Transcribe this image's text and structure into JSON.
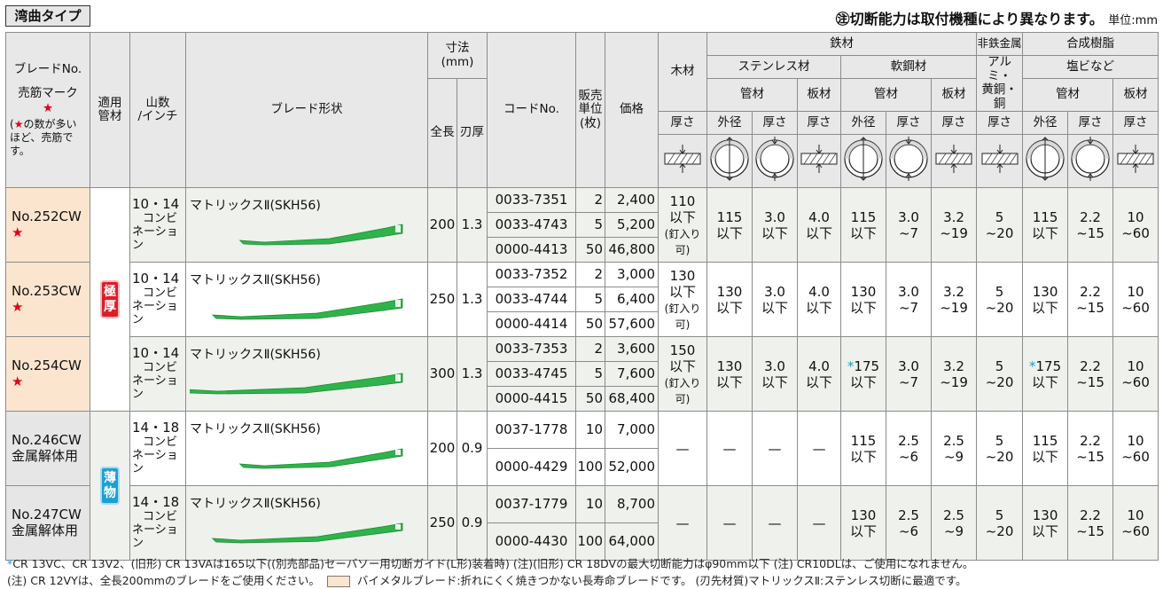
{
  "title": "湾曲タイプ",
  "note": "㊟切断能力は取付機種により異なります。",
  "unit": "単位:mm",
  "header": {
    "blade_no": "ブレードNo.",
    "best_seller": "売筋マーク",
    "star": "★",
    "star_note_1": "の数が多い",
    "star_note_2": "ほど、売筋です。",
    "applicable_1": "適用",
    "applicable_2": "管材",
    "teeth_1": "山数",
    "teeth_2": "/インチ",
    "shape": "ブレード形状",
    "dimensions_1": "寸法",
    "dimensions_2": "(mm)",
    "length": "全長",
    "thickness": "刃厚",
    "code": "コードNo.",
    "unit_1": "販売",
    "unit_2": "単位",
    "unit_3": "(枚)",
    "price": "価格",
    "wood": "木材",
    "steel": "鉄材",
    "stainless": "ステンレス材",
    "mild_steel": "軟鋼材",
    "nonferrous": "非鉄金属",
    "aluminum": "アルミ・",
    "brass_copper": "黄銅・銅",
    "synthetic": "合成樹脂",
    "pvc": "塩ビなど",
    "pipe": "管材",
    "plate": "板材",
    "thick": "厚さ",
    "outer_dia": "外径"
  },
  "badges": {
    "heavy": [
      "極",
      "厚"
    ],
    "thin": [
      "薄",
      "物"
    ]
  },
  "groups": [
    {
      "blade_no": "No.252CW",
      "stars": "★",
      "sub": "",
      "teeth_1": "10・14",
      "teeth_2": "コンビ",
      "teeth_3": "ネーション",
      "shape_label": "マトリックスⅡ(SKH56)",
      "length": "200",
      "thickness": "1.3",
      "codes": [
        {
          "code": "0033-7351",
          "unit": "2",
          "price": "2,400"
        },
        {
          "code": "0033-4743",
          "unit": "5",
          "price": "5,200"
        },
        {
          "code": "0000-4413",
          "unit": "50",
          "price": "46,800"
        }
      ],
      "wood_1": "110",
      "wood_2": "以下",
      "wood_3": "(釘入り可)",
      "vals": [
        [
          "",
          "115",
          "以下"
        ],
        [
          "",
          "3.0",
          "以下"
        ],
        [
          "",
          "4.0",
          "以下"
        ],
        [
          "",
          "115",
          "以下"
        ],
        [
          "",
          "3.0",
          "~7"
        ],
        [
          "",
          "3.2",
          "~19"
        ],
        [
          "",
          "5",
          "~20"
        ],
        [
          "",
          "115",
          "以下"
        ],
        [
          "",
          "2.2",
          "~15"
        ],
        [
          "",
          "10",
          "~60"
        ]
      ]
    },
    {
      "blade_no": "No.253CW",
      "stars": "★",
      "sub": "",
      "teeth_1": "10・14",
      "teeth_2": "コンビ",
      "teeth_3": "ネーション",
      "shape_label": "マトリックスⅡ(SKH56)",
      "length": "250",
      "thickness": "1.3",
      "codes": [
        {
          "code": "0033-7352",
          "unit": "2",
          "price": "3,000"
        },
        {
          "code": "0033-4744",
          "unit": "5",
          "price": "6,400"
        },
        {
          "code": "0000-4414",
          "unit": "50",
          "price": "57,600"
        }
      ],
      "wood_1": "130",
      "wood_2": "以下",
      "wood_3": "(釘入り可)",
      "vals": [
        [
          "",
          "130",
          "以下"
        ],
        [
          "",
          "3.0",
          "以下"
        ],
        [
          "",
          "4.0",
          "以下"
        ],
        [
          "",
          "130",
          "以下"
        ],
        [
          "",
          "3.0",
          "~7"
        ],
        [
          "",
          "3.2",
          "~19"
        ],
        [
          "",
          "5",
          "~20"
        ],
        [
          "",
          "130",
          "以下"
        ],
        [
          "",
          "2.2",
          "~15"
        ],
        [
          "",
          "10",
          "~60"
        ]
      ]
    },
    {
      "blade_no": "No.254CW",
      "stars": "★",
      "sub": "",
      "teeth_1": "10・14",
      "teeth_2": "コンビ",
      "teeth_3": "ネーション",
      "shape_label": "マトリックスⅡ(SKH56)",
      "length": "300",
      "thickness": "1.3",
      "codes": [
        {
          "code": "0033-7353",
          "unit": "2",
          "price": "3,600"
        },
        {
          "code": "0033-4745",
          "unit": "5",
          "price": "7,600"
        },
        {
          "code": "0000-4415",
          "unit": "50",
          "price": "68,400"
        }
      ],
      "wood_1": "150",
      "wood_2": "以下",
      "wood_3": "(釘入り可)",
      "vals": [
        [
          "",
          "130",
          "以下"
        ],
        [
          "",
          "3.0",
          "以下"
        ],
        [
          "",
          "4.0",
          "以下"
        ],
        [
          "*",
          "175",
          "以下"
        ],
        [
          "",
          "3.0",
          "~7"
        ],
        [
          "",
          "3.2",
          "~19"
        ],
        [
          "",
          "5",
          "~20"
        ],
        [
          "*",
          "175",
          "以下"
        ],
        [
          "",
          "2.2",
          "~15"
        ],
        [
          "",
          "10",
          "~60"
        ]
      ]
    },
    {
      "blade_no": "No.246CW",
      "stars": "",
      "sub": "金属解体用",
      "teeth_1": "14・18",
      "teeth_2": "コンビ",
      "teeth_3": "ネーション",
      "shape_label": "マトリックスⅡ(SKH56)",
      "length": "200",
      "thickness": "0.9",
      "codes": [
        {
          "code": "0037-1778",
          "unit": "10",
          "price": "7,000"
        },
        {
          "code": "0000-4429",
          "unit": "100",
          "price": "52,000"
        }
      ],
      "wood_1": "—",
      "wood_2": "",
      "wood_3": "",
      "vals": [
        [
          "",
          "—",
          ""
        ],
        [
          "",
          "—",
          ""
        ],
        [
          "",
          "—",
          ""
        ],
        [
          "",
          "115",
          "以下"
        ],
        [
          "",
          "2.5",
          "~6"
        ],
        [
          "",
          "2.5",
          "~9"
        ],
        [
          "",
          "5",
          "~20"
        ],
        [
          "",
          "115",
          "以下"
        ],
        [
          "",
          "2.2",
          "~15"
        ],
        [
          "",
          "10",
          "~60"
        ]
      ]
    },
    {
      "blade_no": "No.247CW",
      "stars": "",
      "sub": "金属解体用",
      "teeth_1": "14・18",
      "teeth_2": "コンビ",
      "teeth_3": "ネーション",
      "shape_label": "マトリックスⅡ(SKH56)",
      "length": "250",
      "thickness": "0.9",
      "codes": [
        {
          "code": "0037-1779",
          "unit": "10",
          "price": "8,700"
        },
        {
          "code": "0000-4430",
          "unit": "100",
          "price": "64,000"
        }
      ],
      "wood_1": "—",
      "wood_2": "",
      "wood_3": "",
      "vals": [
        [
          "",
          "—",
          ""
        ],
        [
          "",
          "—",
          ""
        ],
        [
          "",
          "—",
          ""
        ],
        [
          "",
          "130",
          "以下"
        ],
        [
          "",
          "2.5",
          "~6"
        ],
        [
          "",
          "2.5",
          "~9"
        ],
        [
          "",
          "5",
          "~20"
        ],
        [
          "",
          "130",
          "以下"
        ],
        [
          "",
          "2.2",
          "~15"
        ],
        [
          "",
          "10",
          "~60"
        ]
      ]
    }
  ],
  "footnotes": {
    "line1_ast": "*",
    "line1": "CR 13VC、CR 13V2、(旧形) CR 13VAは165以下((別売部品)セーバソー用切断ガイド(L形)装着時) (注)(旧形) CR 18DVの最大切断能力はφ90mm以下 (注) CR10DLは、ご使用になれません。",
    "line2a": "(注) CR 12VYは、全長200mmのブレードをご使用ください。",
    "line2b": "バイメタルブレード:折れにくく焼きつかない長寿命ブレードです。 (刃先材質)マトリックスⅡ:ステンレス切断に最適です。"
  },
  "colors": {
    "bimetal": "#fce5cf",
    "accent_red": "#e0001b",
    "accent_blue": "#1a9bd7",
    "blade_green": "#2fb34a"
  }
}
